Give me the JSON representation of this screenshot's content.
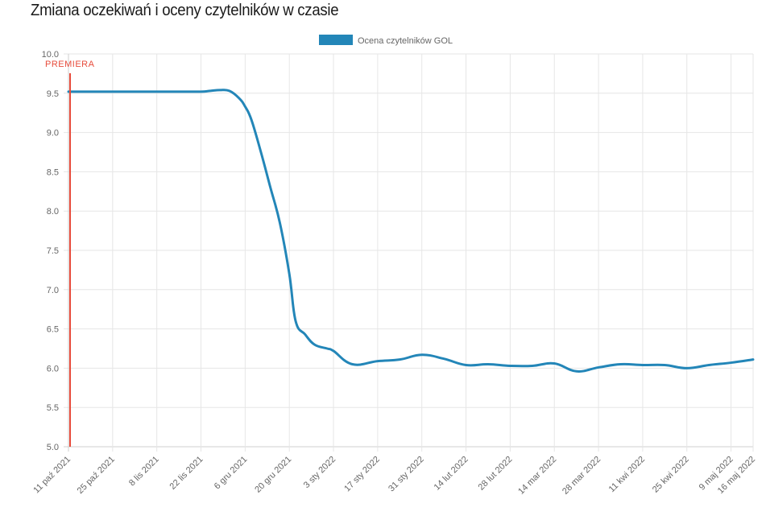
{
  "chart_data": {
    "type": "line",
    "title": "Zmiana oczekiwań i oceny czytelników w czasie",
    "xlabel": "",
    "ylabel": "",
    "ylim": [
      5.0,
      10.0
    ],
    "yticks": [
      "5.0",
      "5.5",
      "6.0",
      "6.5",
      "7.0",
      "7.5",
      "8.0",
      "8.5",
      "9.0",
      "9.5",
      "10.0"
    ],
    "xticks": [
      "11 paź 2021",
      "25 paź 2021",
      "8 lis 2021",
      "22 lis 2021",
      "6 gru 2021",
      "20 gru 2021",
      "3 sty 2022",
      "17 sty 2022",
      "31 sty 2022",
      "14 lut 2022",
      "28 lut 2022",
      "14 mar 2022",
      "28 mar 2022",
      "11 kwi 2022",
      "25 kwi 2022",
      "9 maj 2022",
      "16 maj 2022"
    ],
    "grid": true,
    "legend": "top-center",
    "series": [
      {
        "name": "Ocena czytelników GOL",
        "color": "#2386b8",
        "x": [
          "2021-10-11",
          "2021-10-18",
          "2021-10-25",
          "2021-11-01",
          "2021-11-08",
          "2021-11-15",
          "2021-11-22",
          "2021-11-25",
          "2021-11-28",
          "2021-12-01",
          "2021-12-04",
          "2021-12-06",
          "2021-12-08",
          "2021-12-11",
          "2021-12-14",
          "2021-12-17",
          "2021-12-20",
          "2021-12-22",
          "2021-12-25",
          "2021-12-28",
          "2022-01-01",
          "2022-01-03",
          "2022-01-09",
          "2022-01-17",
          "2022-01-24",
          "2022-01-31",
          "2022-02-07",
          "2022-02-14",
          "2022-02-21",
          "2022-02-28",
          "2022-03-07",
          "2022-03-14",
          "2022-03-21",
          "2022-03-28",
          "2022-04-04",
          "2022-04-11",
          "2022-04-18",
          "2022-04-25",
          "2022-05-02",
          "2022-05-09",
          "2022-05-16"
        ],
        "values": [
          9.52,
          9.52,
          9.52,
          9.52,
          9.52,
          9.52,
          9.52,
          9.53,
          9.54,
          9.53,
          9.44,
          9.33,
          9.16,
          8.75,
          8.3,
          7.85,
          7.2,
          6.6,
          6.43,
          6.3,
          6.25,
          6.22,
          6.05,
          6.09,
          6.11,
          6.17,
          6.12,
          6.04,
          6.05,
          6.03,
          6.03,
          6.06,
          5.96,
          6.01,
          6.05,
          6.04,
          6.04,
          6.0,
          6.04,
          6.07,
          6.11
        ]
      }
    ],
    "markers": [
      {
        "label": "PREMIERA",
        "x": "2021-10-11",
        "color": "#e74c3c"
      }
    ]
  }
}
